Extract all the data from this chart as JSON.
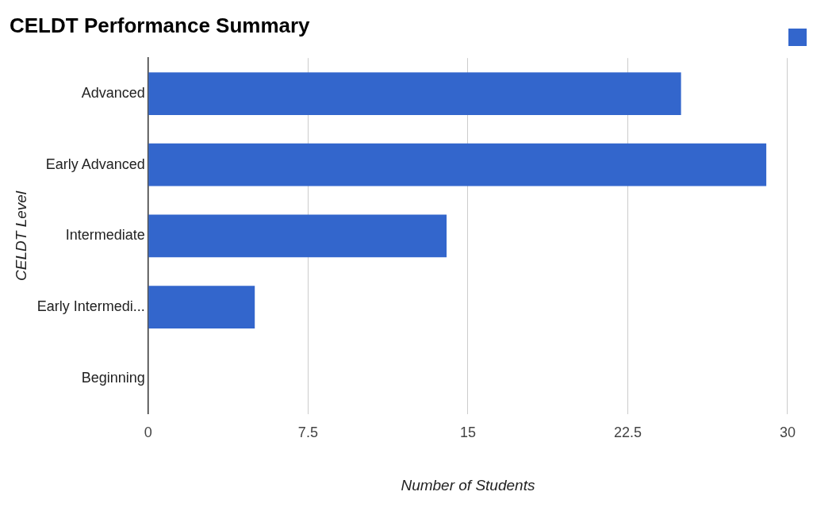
{
  "chart_data": {
    "type": "bar",
    "orientation": "horizontal",
    "title": "CELDT Performance Summary",
    "xlabel": "Number of Students",
    "ylabel": "CELDT Level",
    "categories": [
      "Advanced",
      "Early Advanced",
      "Intermediate",
      "Early Intermedi...",
      "Beginning"
    ],
    "series": [
      {
        "color": "#3366cc",
        "values": [
          25,
          29,
          14,
          5,
          0
        ]
      }
    ],
    "xlim": [
      0,
      30
    ],
    "xticks": [
      0,
      7.5,
      15,
      22.5,
      30
    ],
    "grid": "x"
  }
}
